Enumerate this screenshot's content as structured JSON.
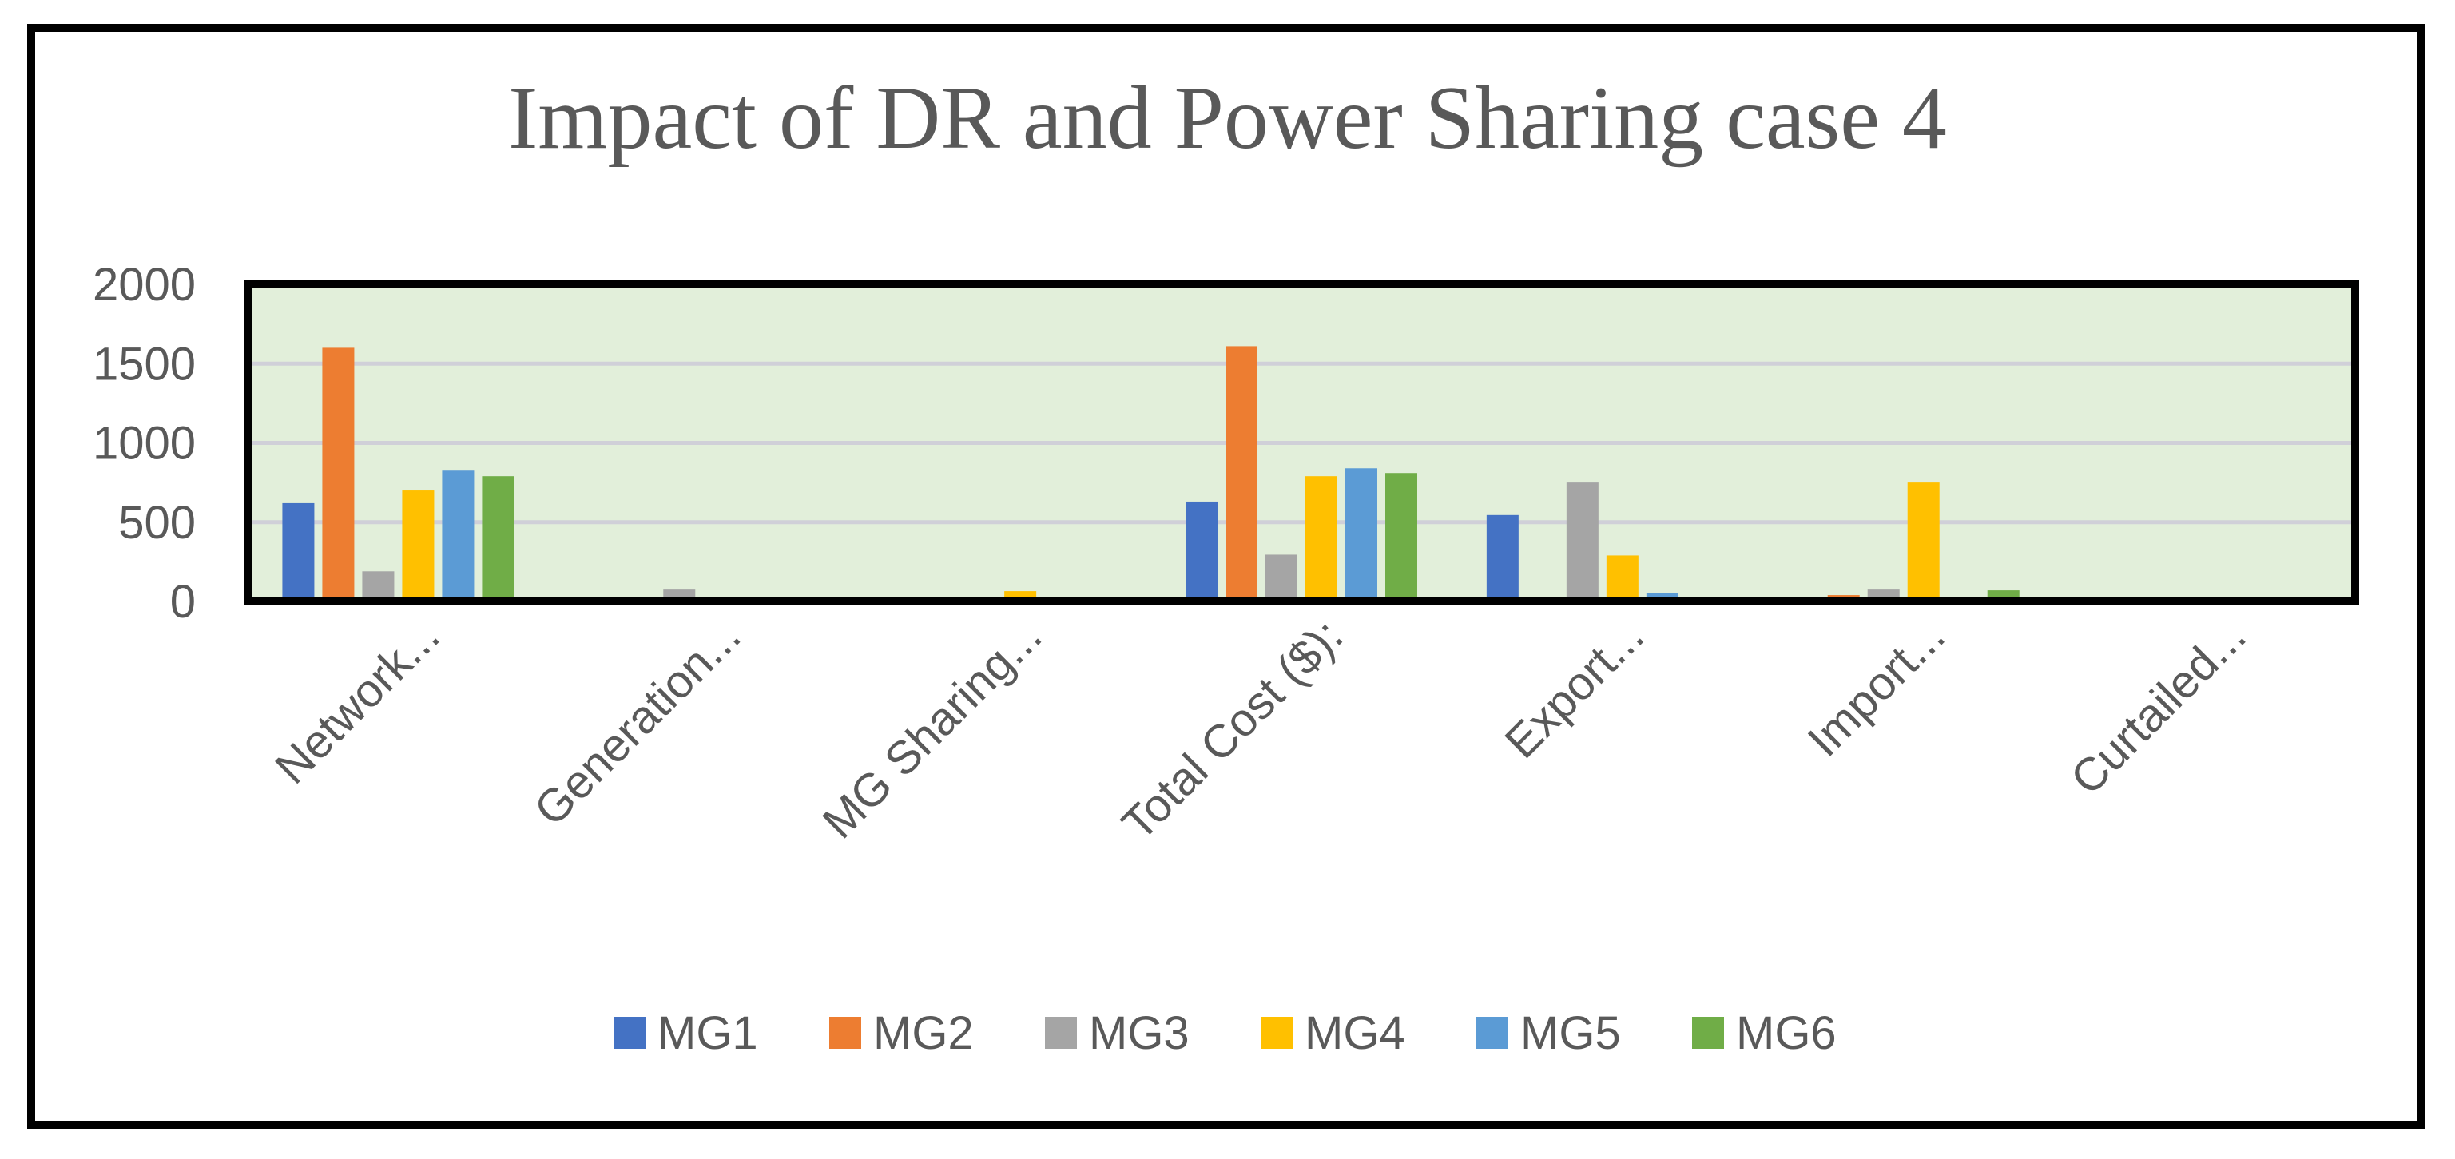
{
  "chart_data": {
    "type": "bar",
    "title": "Impact of DR and Power Sharing case 4",
    "xlabel": "",
    "ylabel": "",
    "ylim": [
      0,
      2000
    ],
    "yticks": [
      0,
      500,
      1000,
      1500,
      2000
    ],
    "grid": true,
    "legend_position": "bottom",
    "categories": [
      "Network...",
      "Generation...",
      "MG Sharing...",
      "Total Cost ($):",
      "Export...",
      "Import...",
      "Curtailed..."
    ],
    "series": [
      {
        "name": "MG1",
        "color": "#4472C4",
        "values": [
          620,
          0,
          0,
          630,
          545,
          0,
          0
        ]
      },
      {
        "name": "MG2",
        "color": "#ED7D31",
        "values": [
          1600,
          0,
          0,
          1610,
          0,
          40,
          0
        ]
      },
      {
        "name": "MG3",
        "color": "#A5A5A5",
        "values": [
          190,
          75,
          0,
          295,
          750,
          75,
          0
        ]
      },
      {
        "name": "MG4",
        "color": "#FFC000",
        "values": [
          700,
          0,
          65,
          790,
          290,
          750,
          0
        ]
      },
      {
        "name": "MG5",
        "color": "#5B9BD5",
        "values": [
          825,
          0,
          0,
          840,
          55,
          25,
          0
        ]
      },
      {
        "name": "MG6",
        "color": "#70AD47",
        "values": [
          790,
          0,
          0,
          810,
          0,
          70,
          0
        ]
      }
    ]
  }
}
